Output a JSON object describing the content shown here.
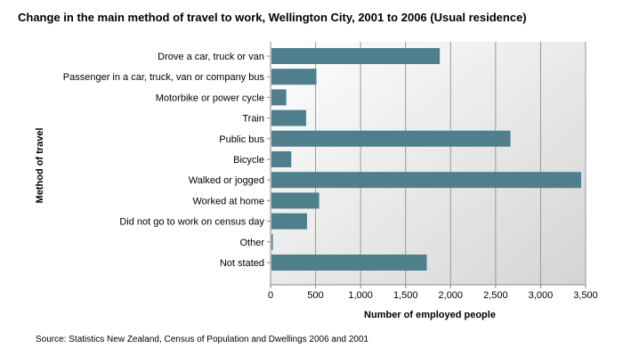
{
  "source": "Source: Statistics New Zealand, Census of Population and Dwellings 2006 and 2001",
  "chart_data": {
    "type": "bar",
    "orientation": "horizontal",
    "title": "Change in the main method of travel to work, Wellington City, 2001 to 2006 (Usual residence)",
    "xlabel": "Number of employed people",
    "ylabel": "Method of travel",
    "categories": [
      "Drove a car, truck or van",
      "Passenger in a car, truck, van or company bus",
      "Motorbike or power cycle",
      "Train",
      "Public bus",
      "Bicycle",
      "Walked or jogged",
      "Worked at home",
      "Did not go to work on census day",
      "Other",
      "Not stated"
    ],
    "values": [
      1880,
      510,
      175,
      395,
      2665,
      230,
      3450,
      540,
      405,
      25,
      1735
    ],
    "xlim": [
      0,
      3500
    ],
    "xticks": [
      0,
      500,
      1000,
      1500,
      2000,
      2500,
      3000,
      3500
    ],
    "xtick_labels": [
      "0",
      "500",
      "1,000",
      "1,500",
      "2,000",
      "2,500",
      "3,000",
      "3,500"
    ],
    "grid": true,
    "bar_color": "#4f7f8d"
  }
}
